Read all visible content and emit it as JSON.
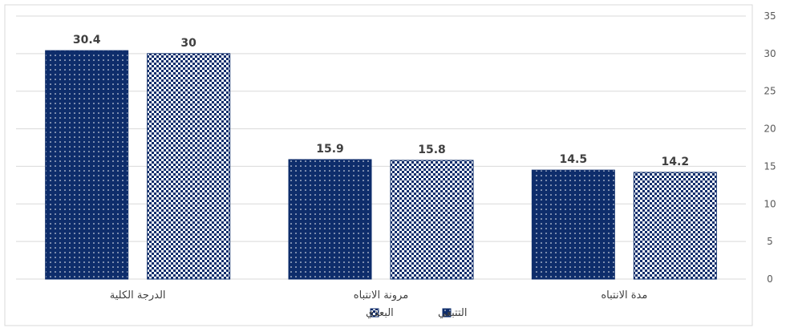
{
  "chart_data": {
    "type": "bar",
    "categories": [
      "الدرجة الكلية",
      "مرونة الانتباه",
      "مدة الانتباه"
    ],
    "series": [
      {
        "name": "التتبعي",
        "values": [
          30.4,
          15.9,
          14.5
        ],
        "pattern": "dots",
        "color": "#0e2d6b"
      },
      {
        "name": "البعدي",
        "values": [
          30,
          15.8,
          14.2
        ],
        "pattern": "checker",
        "color": "#0e2d6b"
      }
    ],
    "ylim": [
      0,
      35
    ],
    "yticks": [
      "0",
      "5",
      "10",
      "15",
      "20",
      "25",
      "30",
      "35"
    ],
    "y_axis_side": "right",
    "grid": true,
    "legend_placement": "bottom",
    "title": "",
    "xlabel": "",
    "ylabel": ""
  }
}
